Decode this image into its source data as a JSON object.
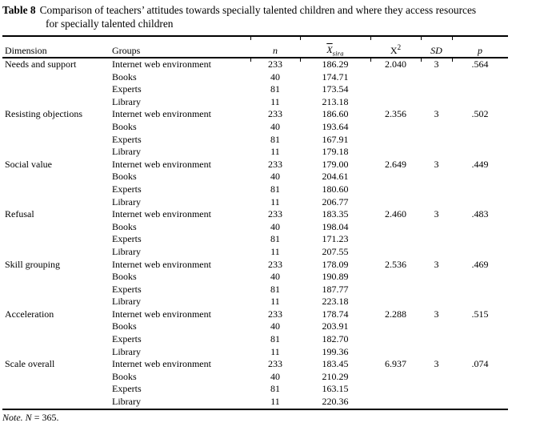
{
  "caption": {
    "label": "Table 8",
    "line1": "Comparison of teachers’ attitudes towards specially talented children and where they access resources",
    "line2": "for specially talented children"
  },
  "table": {
    "header": {
      "dimension": "Dimension",
      "groups": "Groups",
      "n": "n",
      "mean_base": "X",
      "mean_sub": "sira",
      "chi_base": "X",
      "chi_sup": "2",
      "sd": "SD",
      "p": "p"
    },
    "rows": [
      {
        "dimension": "Needs and support",
        "group": "Internet web environment",
        "n": "233",
        "mean": "186.29",
        "chi2": "2.040",
        "sd": "3",
        "p": ".564"
      },
      {
        "dimension": "",
        "group": "Books",
        "n": "40",
        "mean": "174.71",
        "chi2": "",
        "sd": "",
        "p": ""
      },
      {
        "dimension": "",
        "group": "Experts",
        "n": "81",
        "mean": "173.54",
        "chi2": "",
        "sd": "",
        "p": ""
      },
      {
        "dimension": "",
        "group": "Library",
        "n": "11",
        "mean": "213.18",
        "chi2": "",
        "sd": "",
        "p": ""
      },
      {
        "dimension": "Resisting objections",
        "group": "Internet web environment",
        "n": "233",
        "mean": "186.60",
        "chi2": "2.356",
        "sd": "3",
        "p": ".502"
      },
      {
        "dimension": "",
        "group": "Books",
        "n": "40",
        "mean": "193.64",
        "chi2": "",
        "sd": "",
        "p": ""
      },
      {
        "dimension": "",
        "group": "Experts",
        "n": "81",
        "mean": "167.91",
        "chi2": "",
        "sd": "",
        "p": ""
      },
      {
        "dimension": "",
        "group": "Library",
        "n": "11",
        "mean": "179.18",
        "chi2": "",
        "sd": "",
        "p": ""
      },
      {
        "dimension": "Social value",
        "group": "Internet web environment",
        "n": "233",
        "mean": "179.00",
        "chi2": "2.649",
        "sd": "3",
        "p": ".449"
      },
      {
        "dimension": "",
        "group": "Books",
        "n": "40",
        "mean": "204.61",
        "chi2": "",
        "sd": "",
        "p": ""
      },
      {
        "dimension": "",
        "group": "Experts",
        "n": "81",
        "mean": "180.60",
        "chi2": "",
        "sd": "",
        "p": ""
      },
      {
        "dimension": "",
        "group": "Library",
        "n": "11",
        "mean": "206.77",
        "chi2": "",
        "sd": "",
        "p": ""
      },
      {
        "dimension": "Refusal",
        "group": "Internet web environment",
        "n": "233",
        "mean": "183.35",
        "chi2": "2.460",
        "sd": "3",
        "p": ".483"
      },
      {
        "dimension": "",
        "group": "Books",
        "n": "40",
        "mean": "198.04",
        "chi2": "",
        "sd": "",
        "p": ""
      },
      {
        "dimension": "",
        "group": "Experts",
        "n": "81",
        "mean": "171.23",
        "chi2": "",
        "sd": "",
        "p": ""
      },
      {
        "dimension": "",
        "group": "Library",
        "n": "11",
        "mean": "207.55",
        "chi2": "",
        "sd": "",
        "p": ""
      },
      {
        "dimension": "Skill grouping",
        "group": "Internet web environment",
        "n": "233",
        "mean": "178.09",
        "chi2": "2.536",
        "sd": "3",
        "p": ".469"
      },
      {
        "dimension": "",
        "group": "Books",
        "n": "40",
        "mean": "190.89",
        "chi2": "",
        "sd": "",
        "p": ""
      },
      {
        "dimension": "",
        "group": "Experts",
        "n": "81",
        "mean": "187.77",
        "chi2": "",
        "sd": "",
        "p": ""
      },
      {
        "dimension": "",
        "group": "Library",
        "n": "11",
        "mean": "223.18",
        "chi2": "",
        "sd": "",
        "p": ""
      },
      {
        "dimension": "Acceleration",
        "group": "Internet web environment",
        "n": "233",
        "mean": "178.74",
        "chi2": "2.288",
        "sd": "3",
        "p": ".515"
      },
      {
        "dimension": "",
        "group": "Books",
        "n": "40",
        "mean": "203.91",
        "chi2": "",
        "sd": "",
        "p": ""
      },
      {
        "dimension": "",
        "group": "Experts",
        "n": "81",
        "mean": "182.70",
        "chi2": "",
        "sd": "",
        "p": ""
      },
      {
        "dimension": "",
        "group": "Library",
        "n": "11",
        "mean": "199.36",
        "chi2": "",
        "sd": "",
        "p": ""
      },
      {
        "dimension": "Scale overall",
        "group": "Internet web environment",
        "n": "233",
        "mean": "183.45",
        "chi2": "6.937",
        "sd": "3",
        "p": ".074"
      },
      {
        "dimension": "",
        "group": "Books",
        "n": "40",
        "mean": "210.29",
        "chi2": "",
        "sd": "",
        "p": ""
      },
      {
        "dimension": "",
        "group": "Experts",
        "n": "81",
        "mean": "163.15",
        "chi2": "",
        "sd": "",
        "p": ""
      },
      {
        "dimension": "",
        "group": "Library",
        "n": "11",
        "mean": "220.36",
        "chi2": "",
        "sd": "",
        "p": ""
      }
    ]
  },
  "note": {
    "word": "Note.",
    "n": "N",
    "rest": "= 365."
  }
}
